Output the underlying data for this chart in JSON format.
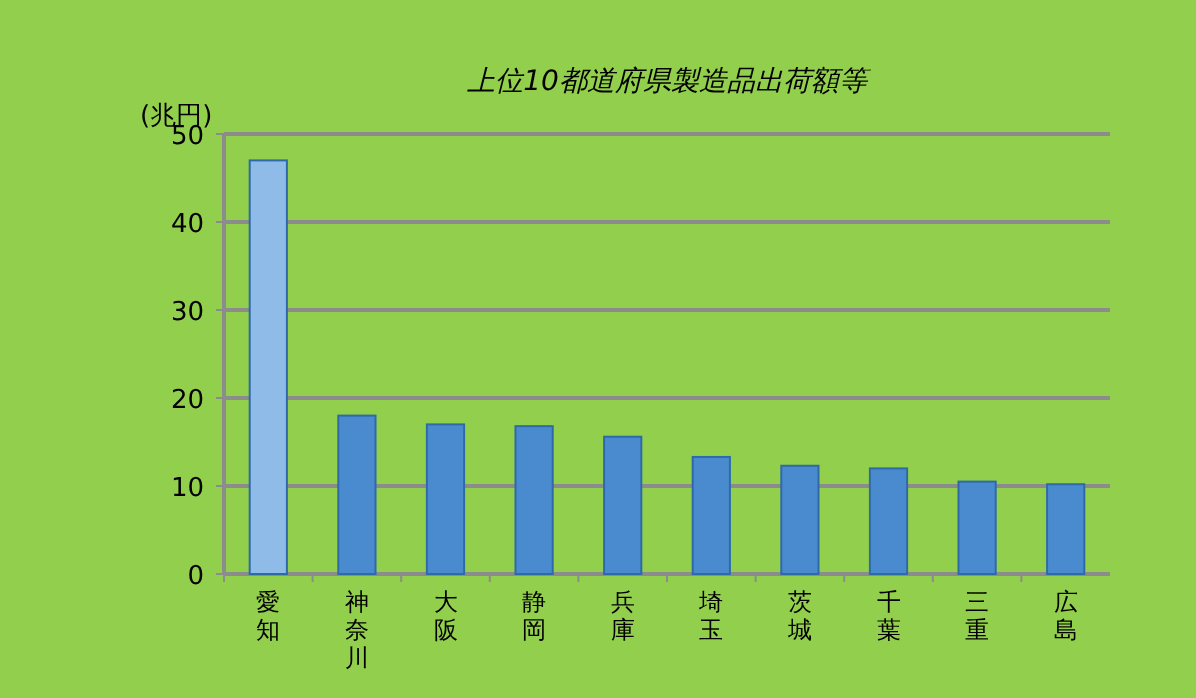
{
  "chart_data": {
    "type": "bar",
    "title": "上位10都道府県製造品出荷額等",
    "ylabel": "(兆円)",
    "categories": [
      "愛知",
      "神奈川",
      "大阪",
      "静岡",
      "兵庫",
      "埼玉",
      "茨城",
      "千葉",
      "三重",
      "広島"
    ],
    "values": [
      47,
      18,
      17,
      16.8,
      15.6,
      13.3,
      12.3,
      12,
      10.5,
      10.2
    ],
    "colors": [
      "#8fbbe8",
      "#4a8bd0",
      "#4a8bd0",
      "#4a8bd0",
      "#4a8bd0",
      "#4a8bd0",
      "#4a8bd0",
      "#4a8bd0",
      "#4a8bd0",
      "#4a8bd0"
    ],
    "ylim": [
      0,
      50
    ],
    "yticks": [
      0,
      10,
      20,
      30,
      40,
      50
    ],
    "grid": "y"
  }
}
